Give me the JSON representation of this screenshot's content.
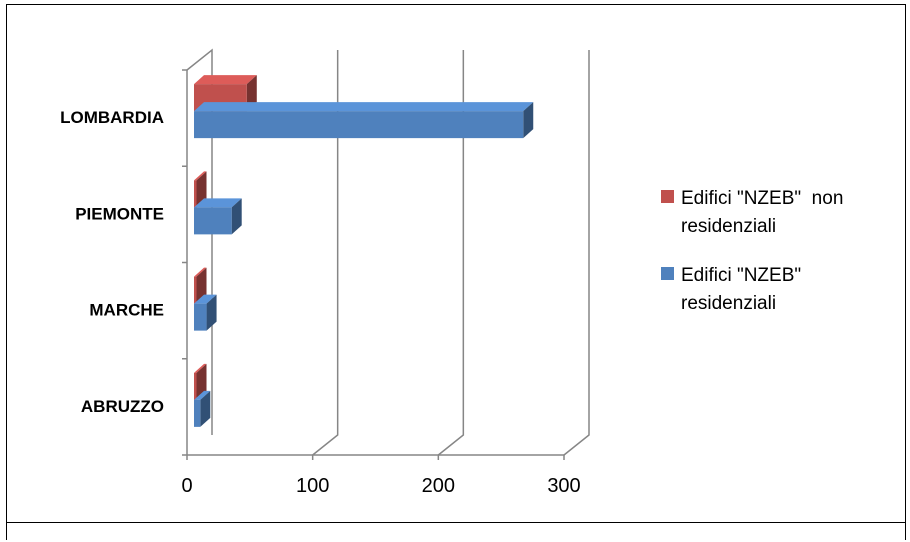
{
  "chart_data": {
    "type": "bar",
    "orientation": "horizontal",
    "style": "3d-clustered",
    "categories": [
      "ABRUZZO",
      "MARCHE",
      "PIEMONTE",
      "LOMBARDIA"
    ],
    "series": [
      {
        "name": "Edifici \"NZEB\"  non residenziali",
        "name_lines": [
          "Edifici \"NZEB\"  non",
          "residenziali"
        ],
        "color": "#C0504D",
        "values": [
          2,
          2,
          2,
          42
        ]
      },
      {
        "name": "Edifici \"NZEB\" residenziali",
        "name_lines": [
          "Edifici \"NZEB\"",
          "residenziali"
        ],
        "color": "#4F81BD",
        "values": [
          5,
          10,
          30,
          262
        ]
      }
    ],
    "xlim": [
      0,
      300
    ],
    "xticks": [
      "0",
      "100",
      "200",
      "300"
    ],
    "grid": true,
    "legend_position": "right"
  }
}
